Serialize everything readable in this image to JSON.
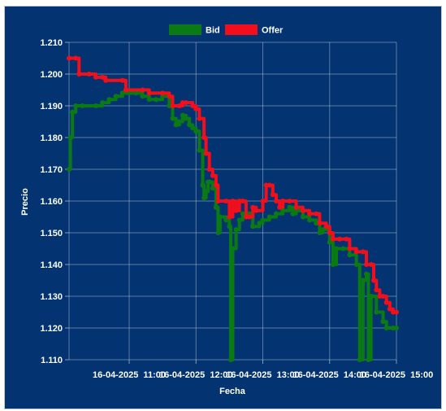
{
  "chart_data": {
    "type": "line",
    "title": "",
    "xlabel": "Fecha",
    "ylabel": "Precio",
    "ylim": [
      1.11,
      1.21
    ],
    "grid": true,
    "legend_position": "top-center",
    "yticks": [
      "1.110",
      "1.120",
      "1.130",
      "1.140",
      "1.150",
      "1.160",
      "1.170",
      "1.180",
      "1.190",
      "1.200",
      "1.210"
    ],
    "xticks": [
      {
        "label": "16-04-2025  11:00",
        "t": 11.0
      },
      {
        "label": "16-04-2025  12:00",
        "t": 12.0
      },
      {
        "label": "16-04-2025  13:00",
        "t": 13.0
      },
      {
        "label": "16-04-2025  14:00",
        "t": 14.0
      },
      {
        "label": "16-04-2025  15:00",
        "t": 15.0
      }
    ],
    "xlim": [
      10.1,
      15.0
    ],
    "series": [
      {
        "name": "Bid",
        "color": "#0a7a12",
        "points": [
          [
            10.1,
            1.17
          ],
          [
            10.12,
            1.18
          ],
          [
            10.15,
            1.188
          ],
          [
            10.2,
            1.19
          ],
          [
            10.3,
            1.19
          ],
          [
            10.5,
            1.19
          ],
          [
            10.6,
            1.191
          ],
          [
            10.7,
            1.192
          ],
          [
            10.8,
            1.193
          ],
          [
            10.9,
            1.194
          ],
          [
            11.0,
            1.194
          ],
          [
            11.1,
            1.194
          ],
          [
            11.2,
            1.193
          ],
          [
            11.3,
            1.192
          ],
          [
            11.4,
            1.192
          ],
          [
            11.5,
            1.193
          ],
          [
            11.6,
            1.19
          ],
          [
            11.65,
            1.186
          ],
          [
            11.7,
            1.184
          ],
          [
            11.75,
            1.185
          ],
          [
            11.8,
            1.187
          ],
          [
            11.85,
            1.186
          ],
          [
            11.9,
            1.184
          ],
          [
            11.95,
            1.183
          ],
          [
            12.0,
            1.182
          ],
          [
            12.05,
            1.176
          ],
          [
            12.1,
            1.165
          ],
          [
            12.12,
            1.161
          ],
          [
            12.15,
            1.163
          ],
          [
            12.18,
            1.166
          ],
          [
            12.2,
            1.166
          ],
          [
            12.25,
            1.164
          ],
          [
            12.3,
            1.158
          ],
          [
            12.33,
            1.15
          ],
          [
            12.36,
            1.155
          ],
          [
            12.45,
            1.154
          ],
          [
            12.5,
            1.152
          ],
          [
            12.52,
            1.11
          ],
          [
            12.55,
            1.145
          ],
          [
            12.6,
            1.151
          ],
          [
            12.65,
            1.154
          ],
          [
            12.7,
            1.156
          ],
          [
            12.8,
            1.156
          ],
          [
            12.85,
            1.152
          ],
          [
            12.95,
            1.153
          ],
          [
            13.0,
            1.154
          ],
          [
            13.1,
            1.155
          ],
          [
            13.2,
            1.156
          ],
          [
            13.3,
            1.157
          ],
          [
            13.4,
            1.158
          ],
          [
            13.45,
            1.156
          ],
          [
            13.5,
            1.157
          ],
          [
            13.6,
            1.155
          ],
          [
            13.7,
            1.154
          ],
          [
            13.8,
            1.153
          ],
          [
            13.85,
            1.15
          ],
          [
            13.9,
            1.151
          ],
          [
            14.0,
            1.147
          ],
          [
            14.05,
            1.14
          ],
          [
            14.1,
            1.145
          ],
          [
            14.2,
            1.145
          ],
          [
            14.3,
            1.143
          ],
          [
            14.4,
            1.14
          ],
          [
            14.45,
            1.11
          ],
          [
            14.5,
            1.135
          ],
          [
            14.55,
            1.137
          ],
          [
            14.58,
            1.11
          ],
          [
            14.62,
            1.13
          ],
          [
            14.7,
            1.125
          ],
          [
            14.8,
            1.122
          ],
          [
            14.85,
            1.12
          ],
          [
            14.95,
            1.12
          ],
          [
            15.0,
            1.12
          ]
        ]
      },
      {
        "name": "Offer",
        "color": "#f20f1b",
        "points": [
          [
            10.1,
            1.205
          ],
          [
            10.2,
            1.205
          ],
          [
            10.25,
            1.2
          ],
          [
            10.4,
            1.2
          ],
          [
            10.5,
            1.199
          ],
          [
            10.6,
            1.199
          ],
          [
            10.65,
            1.198
          ],
          [
            10.9,
            1.198
          ],
          [
            10.95,
            1.195
          ],
          [
            11.2,
            1.195
          ],
          [
            11.3,
            1.194
          ],
          [
            11.5,
            1.194
          ],
          [
            11.6,
            1.193
          ],
          [
            11.65,
            1.19
          ],
          [
            11.75,
            1.19
          ],
          [
            11.8,
            1.191
          ],
          [
            11.85,
            1.191
          ],
          [
            11.95,
            1.19
          ],
          [
            12.0,
            1.189
          ],
          [
            12.05,
            1.186
          ],
          [
            12.12,
            1.18
          ],
          [
            12.15,
            1.175
          ],
          [
            12.2,
            1.17
          ],
          [
            12.25,
            1.168
          ],
          [
            12.3,
            1.165
          ],
          [
            12.33,
            1.16
          ],
          [
            12.45,
            1.16
          ],
          [
            12.5,
            1.155
          ],
          [
            12.55,
            1.16
          ],
          [
            12.6,
            1.157
          ],
          [
            12.65,
            1.16
          ],
          [
            12.7,
            1.16
          ],
          [
            12.75,
            1.155
          ],
          [
            12.8,
            1.155
          ],
          [
            12.85,
            1.158
          ],
          [
            12.9,
            1.157
          ],
          [
            13.0,
            1.16
          ],
          [
            13.05,
            1.165
          ],
          [
            13.1,
            1.165
          ],
          [
            13.15,
            1.162
          ],
          [
            13.2,
            1.16
          ],
          [
            13.25,
            1.158
          ],
          [
            13.3,
            1.16
          ],
          [
            13.4,
            1.16
          ],
          [
            13.5,
            1.158
          ],
          [
            13.6,
            1.157
          ],
          [
            13.7,
            1.156
          ],
          [
            13.8,
            1.156
          ],
          [
            13.85,
            1.153
          ],
          [
            13.95,
            1.152
          ],
          [
            14.0,
            1.15
          ],
          [
            14.05,
            1.148
          ],
          [
            14.15,
            1.148
          ],
          [
            14.25,
            1.148
          ],
          [
            14.3,
            1.145
          ],
          [
            14.4,
            1.144
          ],
          [
            14.5,
            1.144
          ],
          [
            14.55,
            1.14
          ],
          [
            14.62,
            1.14
          ],
          [
            14.66,
            1.135
          ],
          [
            14.7,
            1.132
          ],
          [
            14.75,
            1.13
          ],
          [
            14.8,
            1.13
          ],
          [
            14.85,
            1.128
          ],
          [
            14.9,
            1.126
          ],
          [
            14.95,
            1.125
          ],
          [
            15.0,
            1.125
          ]
        ]
      }
    ]
  }
}
